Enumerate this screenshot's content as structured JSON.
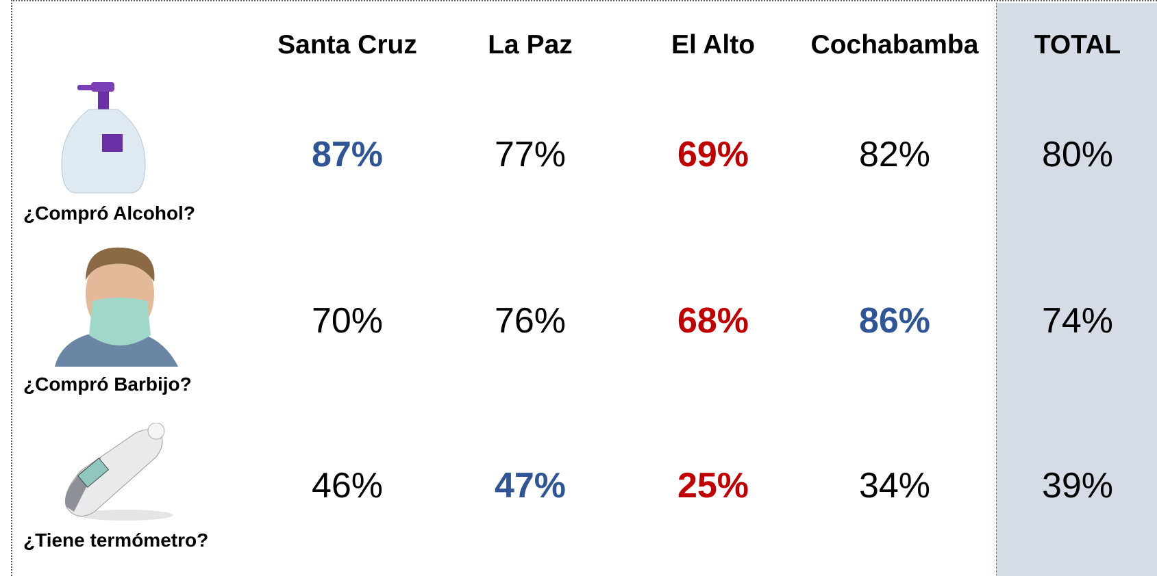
{
  "table": {
    "columns": [
      "Santa Cruz",
      "La Paz",
      "El Alto",
      "Cochabamba",
      "TOTAL"
    ],
    "rows": [
      {
        "label": "¿Compró Alcohol?",
        "cells": [
          {
            "text": "87%",
            "color": "#2f5597",
            "bold": true
          },
          {
            "text": "77%",
            "color": "#000000",
            "bold": false
          },
          {
            "text": "69%",
            "color": "#c00000",
            "bold": true
          },
          {
            "text": "82%",
            "color": "#000000",
            "bold": false
          },
          {
            "text": "80%",
            "color": "#000000",
            "bold": false
          }
        ]
      },
      {
        "label": "¿Compró Barbijo?",
        "cells": [
          {
            "text": "70%",
            "color": "#000000",
            "bold": false
          },
          {
            "text": "76%",
            "color": "#000000",
            "bold": false
          },
          {
            "text": "68%",
            "color": "#c00000",
            "bold": true
          },
          {
            "text": "86%",
            "color": "#2f5597",
            "bold": true
          },
          {
            "text": "74%",
            "color": "#000000",
            "bold": false
          }
        ]
      },
      {
        "label": "¿Tiene termómetro?",
        "cells": [
          {
            "text": "46%",
            "color": "#000000",
            "bold": false
          },
          {
            "text": "47%",
            "color": "#2f5597",
            "bold": true
          },
          {
            "text": "25%",
            "color": "#c00000",
            "bold": true
          },
          {
            "text": "34%",
            "color": "#000000",
            "bold": false
          },
          {
            "text": "39%",
            "color": "#000000",
            "bold": false
          }
        ]
      }
    ]
  }
}
